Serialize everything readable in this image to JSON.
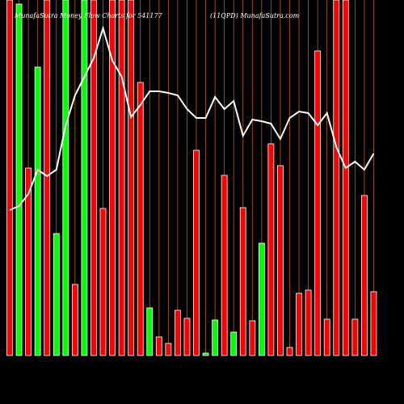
{
  "chart_data": {
    "type": "bar",
    "title": "MunafaSutra  Money Flow Charts for 541177",
    "subtitle": "(11QPD) MunafaSutra.com",
    "ylim": [
      0,
      440
    ],
    "series": [
      {
        "name": "Money flow",
        "colors": [
          "#ff0000",
          "#00ff00",
          "#ff0000",
          "#00ff00",
          "#ff0000",
          "#00ff00",
          "#00ff00",
          "#ff0000",
          "#00ff00",
          "#ff0000",
          "#ff0000",
          "#ff0000",
          "#ff0000",
          "#ff0000",
          "#ff0000",
          "#00ff00",
          "#ff0000",
          "#ff0000",
          "#ff0000",
          "#ff0000",
          "#ff0000",
          "#00ff00",
          "#00ff00",
          "#ff0000",
          "#00ff00",
          "#ff0000",
          "#ff0000",
          "#00ff00",
          "#ff0000",
          "#ff0000",
          "#ff0000",
          "#ff0000",
          "#ff0000",
          "#ff0000",
          "#ff0000",
          "#ff0000",
          "#ff0000",
          "#ff0000",
          "#ff0000",
          "#ff0000"
        ],
        "values": [
          440,
          435,
          232,
          357,
          440,
          151,
          440,
          88,
          440,
          440,
          182,
          440,
          440,
          440,
          338,
          59,
          23,
          15,
          56,
          46,
          254,
          3,
          44,
          223,
          29,
          183,
          43,
          139,
          262,
          235,
          10,
          77,
          81,
          377,
          45,
          440,
          440,
          45,
          198,
          79
        ]
      },
      {
        "name": "Price",
        "color": "#ffffff",
        "values": [
          180,
          185,
          200,
          230,
          222,
          230,
          285,
          322,
          345,
          368,
          405,
          365,
          345,
          295,
          310,
          327,
          327,
          325,
          322,
          305,
          294,
          294,
          320,
          305,
          315,
          272,
          292,
          290,
          287,
          268,
          294,
          302,
          300,
          285,
          300,
          258,
          232,
          240,
          230,
          250
        ]
      }
    ]
  }
}
